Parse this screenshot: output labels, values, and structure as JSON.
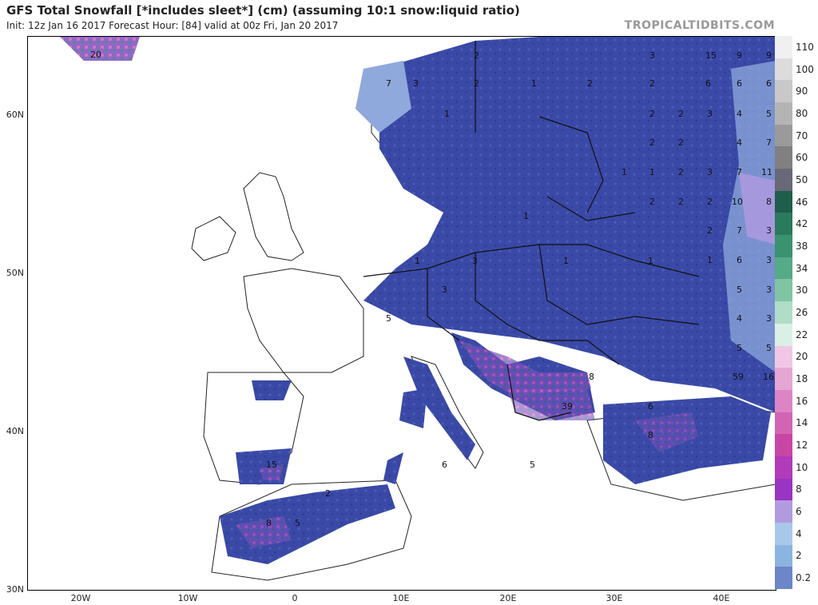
{
  "header": {
    "title": "GFS Total Snowfall [*includes sleet*] (cm) (assuming 10:1 snow:liquid ratio)",
    "subtitle": "Init: 12z Jan 16 2017   Forecast Hour: [84]   valid at 00z Fri, Jan 20 2017",
    "brand": "TROPICALTIDBITS.COM"
  },
  "axes": {
    "lat_labels": [
      "60N",
      "50N",
      "40N",
      "30N"
    ],
    "lon_labels": [
      "20W",
      "10W",
      "0",
      "10E",
      "20E",
      "30E",
      "40E"
    ]
  },
  "colorbar": {
    "unit": "cm",
    "levels": [
      {
        "value": "110",
        "color": "#f0f0f0"
      },
      {
        "value": "100",
        "color": "#dcdcdc"
      },
      {
        "value": "90",
        "color": "#c8c8c8"
      },
      {
        "value": "80",
        "color": "#b4b4b4"
      },
      {
        "value": "70",
        "color": "#9a9a9a"
      },
      {
        "value": "60",
        "color": "#808080"
      },
      {
        "value": "50",
        "color": "#686878"
      },
      {
        "value": "46",
        "color": "#1f5e4a"
      },
      {
        "value": "42",
        "color": "#2b7a5e"
      },
      {
        "value": "38",
        "color": "#3a9270"
      },
      {
        "value": "34",
        "color": "#55aa88"
      },
      {
        "value": "30",
        "color": "#80c4a4"
      },
      {
        "value": "26",
        "color": "#b0dcc8"
      },
      {
        "value": "22",
        "color": "#daf0e6"
      },
      {
        "value": "20",
        "color": "#f0c8e6"
      },
      {
        "value": "18",
        "color": "#e6a6d4"
      },
      {
        "value": "16",
        "color": "#dc84c4"
      },
      {
        "value": "14",
        "color": "#d264b4"
      },
      {
        "value": "12",
        "color": "#c845a6"
      },
      {
        "value": "10",
        "color": "#b13bb8"
      },
      {
        "value": "8",
        "color": "#9a34c2"
      },
      {
        "value": "6",
        "color": "#b29ae0"
      },
      {
        "value": "4",
        "color": "#a8c8ea"
      },
      {
        "value": "2",
        "color": "#8cb4e0"
      },
      {
        "value": "0.2",
        "color": "#6c86c8"
      }
    ]
  },
  "map_labels": [
    {
      "id": "norway-20",
      "text": "20"
    },
    {
      "id": "nor-7",
      "text": "7"
    },
    {
      "id": "nor-3",
      "text": "3"
    },
    {
      "id": "swe-2a",
      "text": "2"
    },
    {
      "id": "swe-2b",
      "text": "2"
    },
    {
      "id": "swe-1",
      "text": "1"
    },
    {
      "id": "fin-1",
      "text": "1"
    },
    {
      "id": "fin-2",
      "text": "2"
    },
    {
      "id": "rus-3a",
      "text": "3"
    },
    {
      "id": "rus-15",
      "text": "15"
    },
    {
      "id": "rus-9a",
      "text": "9"
    },
    {
      "id": "rus-9b",
      "text": "9"
    },
    {
      "id": "rus-6a",
      "text": "6"
    },
    {
      "id": "rus-6b",
      "text": "6"
    },
    {
      "id": "rus-6c",
      "text": "6"
    },
    {
      "id": "rus-2a",
      "text": "2"
    },
    {
      "id": "rus-2b",
      "text": "2"
    },
    {
      "id": "rus-2c",
      "text": "2"
    },
    {
      "id": "rus-3b",
      "text": "3"
    },
    {
      "id": "rus-4a",
      "text": "4"
    },
    {
      "id": "rus-5a",
      "text": "5"
    },
    {
      "id": "rus-2d",
      "text": "2"
    },
    {
      "id": "rus-2e",
      "text": "2"
    },
    {
      "id": "rus-4b",
      "text": "4"
    },
    {
      "id": "rus-7a",
      "text": "7"
    },
    {
      "id": "rus-1a",
      "text": "1"
    },
    {
      "id": "rus-1b",
      "text": "1"
    },
    {
      "id": "rus-2f",
      "text": "2"
    },
    {
      "id": "rus-3c",
      "text": "3"
    },
    {
      "id": "rus-7b",
      "text": "7"
    },
    {
      "id": "rus-11",
      "text": "11"
    },
    {
      "id": "rus-2g",
      "text": "2"
    },
    {
      "id": "rus-2h",
      "text": "2"
    },
    {
      "id": "rus-2i",
      "text": "2"
    },
    {
      "id": "rus-10",
      "text": "10"
    },
    {
      "id": "rus-8",
      "text": "8"
    },
    {
      "id": "rus-2j",
      "text": "2"
    },
    {
      "id": "rus-7c",
      "text": "7"
    },
    {
      "id": "rus-3d",
      "text": "3"
    },
    {
      "id": "rus-1c",
      "text": "1"
    },
    {
      "id": "rus-6d",
      "text": "6"
    },
    {
      "id": "rus-3e",
      "text": "3"
    },
    {
      "id": "rus-5b",
      "text": "5"
    },
    {
      "id": "rus-3f",
      "text": "3"
    },
    {
      "id": "rus-4c",
      "text": "4"
    },
    {
      "id": "rus-3g",
      "text": "3"
    },
    {
      "id": "rus-5c",
      "text": "5"
    },
    {
      "id": "rus-5d",
      "text": "5"
    },
    {
      "id": "rus-59",
      "text": "59"
    },
    {
      "id": "rus-16",
      "text": "16"
    },
    {
      "id": "pol-1a",
      "text": "1"
    },
    {
      "id": "pol-1b",
      "text": "1"
    },
    {
      "id": "ger-1",
      "text": "1"
    },
    {
      "id": "cze-3",
      "text": "3"
    },
    {
      "id": "ukr-1",
      "text": "1"
    },
    {
      "id": "aus-3",
      "text": "3"
    },
    {
      "id": "sui-5",
      "text": "5"
    },
    {
      "id": "rom-8",
      "text": "8"
    },
    {
      "id": "bul-39",
      "text": "39"
    },
    {
      "id": "gre-5",
      "text": "5"
    },
    {
      "id": "ita-6",
      "text": "6"
    },
    {
      "id": "tur-6",
      "text": "6"
    },
    {
      "id": "tur-8",
      "text": "8"
    },
    {
      "id": "spa-15",
      "text": "15"
    },
    {
      "id": "alg-2",
      "text": "2"
    },
    {
      "id": "mor-8",
      "text": "8"
    },
    {
      "id": "mor-5",
      "text": "5"
    }
  ]
}
